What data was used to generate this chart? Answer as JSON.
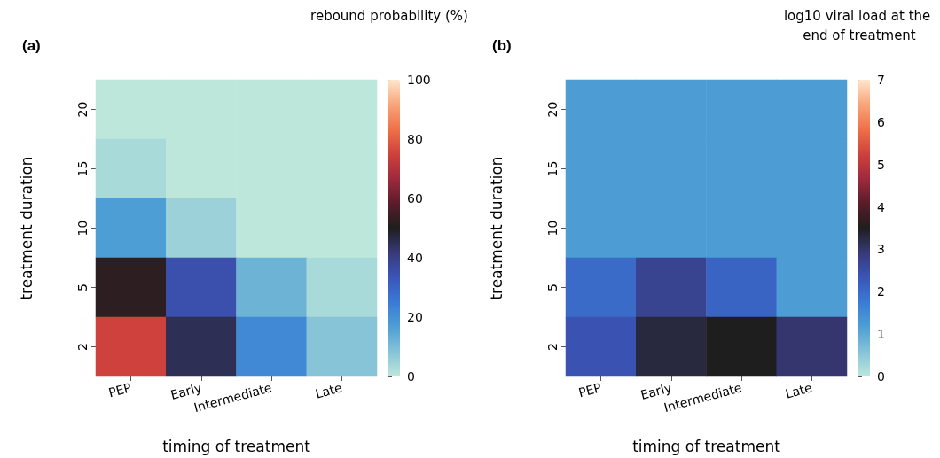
{
  "chart_data": [
    {
      "type": "heatmap",
      "title": "(a)",
      "xlabel": "timing of treatment",
      "ylabel": "treatment duration",
      "clabel": "rebound probability (%)",
      "categories": [
        "PEP",
        "Early",
        "Intermediate",
        "Late"
      ],
      "y_categories": [
        "20",
        "15",
        "10",
        "5",
        "2"
      ],
      "cells": [
        [
          0,
          0,
          0,
          0
        ],
        [
          3,
          0,
          0,
          0
        ],
        [
          17,
          5,
          0,
          0
        ],
        [
          52,
          35,
          12,
          3
        ],
        [
          75,
          45,
          22,
          8
        ]
      ],
      "clim": [
        0,
        100
      ],
      "cticks": [
        0,
        20,
        40,
        60,
        80,
        100
      ]
    },
    {
      "type": "heatmap",
      "title": "(b)",
      "xlabel": "timing of treatment",
      "ylabel": "treatment duration",
      "clabel": "log10 viral load at the end of treatment",
      "categories": [
        "PEP",
        "Early",
        "Intermediate",
        "Late"
      ],
      "y_categories": [
        "20",
        "15",
        "10",
        "5",
        "2"
      ],
      "cells": [
        [
          1.2,
          1.2,
          1.2,
          1.2
        ],
        [
          1.2,
          1.2,
          1.2,
          1.2
        ],
        [
          1.2,
          1.2,
          1.2,
          1.2
        ],
        [
          2.0,
          2.7,
          2.1,
          1.2
        ],
        [
          2.4,
          3.3,
          3.5,
          3.0
        ]
      ],
      "clim": [
        0,
        7
      ],
      "cticks": [
        0,
        1,
        2,
        3,
        4,
        5,
        6,
        7
      ]
    }
  ]
}
